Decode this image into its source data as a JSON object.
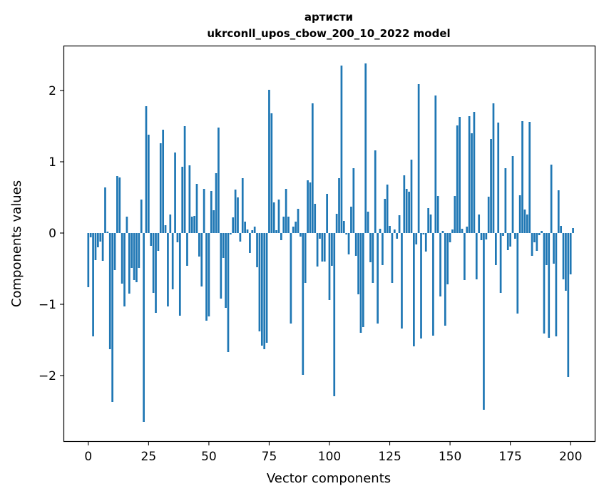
{
  "chart_data": {
    "type": "bar",
    "title": "артисти",
    "subtitle": "ukrconll_upos_cbow_200_10_2022 model",
    "xlabel": "Vector components",
    "ylabel": "Components values",
    "xlim": [
      -10,
      210
    ],
    "ylim": [
      -2.92,
      2.62
    ],
    "xticks": [
      0,
      25,
      50,
      75,
      100,
      125,
      150,
      175,
      200
    ],
    "xtick_labels": [
      "0",
      "25",
      "50",
      "75",
      "100",
      "125",
      "150",
      "175",
      "200"
    ],
    "yticks": [
      -2,
      -1,
      0,
      1,
      2
    ],
    "ytick_labels": [
      "−2",
      "−1",
      "0",
      "1",
      "2"
    ],
    "grid": false,
    "color": "#1f77b4",
    "values": [
      -0.76,
      -0.06,
      -1.45,
      -0.38,
      -0.2,
      -0.12,
      -0.39,
      0.64,
      0.02,
      -1.63,
      -2.37,
      -0.52,
      0.8,
      0.78,
      -0.71,
      -1.03,
      0.23,
      -0.85,
      -0.49,
      -0.66,
      -0.69,
      -0.49,
      0.47,
      -2.65,
      1.78,
      1.38,
      -0.18,
      -0.84,
      -1.12,
      -0.25,
      1.26,
      1.45,
      0.11,
      -1.03,
      0.26,
      -0.79,
      1.13,
      -0.13,
      -1.16,
      0.93,
      1.5,
      -0.46,
      0.95,
      0.23,
      0.24,
      0.69,
      -0.33,
      -0.75,
      0.62,
      -1.23,
      -1.17,
      0.59,
      0.32,
      0.84,
      1.48,
      -0.92,
      -0.35,
      -1.05,
      -1.67,
      -0.02,
      0.22,
      0.61,
      0.5,
      -0.12,
      0.77,
      0.16,
      0.05,
      -0.28,
      0.04,
      0.09,
      -0.48,
      -1.38,
      -1.58,
      -1.63,
      -1.54,
      2.01,
      1.68,
      0.43,
      0.04,
      0.47,
      -0.1,
      0.23,
      0.62,
      0.23,
      -1.27,
      0.09,
      0.16,
      0.34,
      -0.05,
      -1.99,
      -0.7,
      0.74,
      0.71,
      1.82,
      0.41,
      -0.47,
      -0.08,
      -0.4,
      -0.4,
      0.55,
      -0.94,
      -0.46,
      -2.29,
      0.27,
      0.77,
      2.35,
      0.17,
      -0.02,
      -0.3,
      0.37,
      0.91,
      -0.32,
      -0.86,
      -1.4,
      -1.32,
      2.38,
      0.3,
      -0.41,
      -0.7,
      1.16,
      -1.27,
      0.06,
      -0.45,
      0.48,
      0.68,
      0.1,
      -0.7,
      0.05,
      -0.08,
      0.25,
      -1.34,
      0.81,
      0.62,
      0.58,
      1.03,
      -1.59,
      -0.16,
      2.09,
      -1.48,
      -0.02,
      -0.26,
      0.35,
      0.26,
      -1.44,
      1.93,
      0.52,
      -0.89,
      0.03,
      -1.3,
      -0.72,
      -0.13,
      0.05,
      0.52,
      1.51,
      1.63,
      0.06,
      -0.66,
      0.09,
      1.64,
      1.4,
      1.7,
      -0.65,
      0.26,
      -0.1,
      -2.48,
      -0.09,
      0.51,
      1.32,
      1.82,
      -0.45,
      1.55,
      -0.84,
      -0.04,
      0.91,
      -0.24,
      -0.19,
      1.08,
      -0.08,
      -1.13,
      0.53,
      1.57,
      0.33,
      0.26,
      1.56,
      -0.32,
      -0.13,
      -0.25,
      -0.03,
      0.03,
      -1.41,
      -0.45,
      -1.47,
      0.96,
      -0.43,
      -1.45,
      0.6,
      0.1,
      -0.65,
      -0.81,
      -2.02,
      -0.58,
      0.07
    ]
  }
}
